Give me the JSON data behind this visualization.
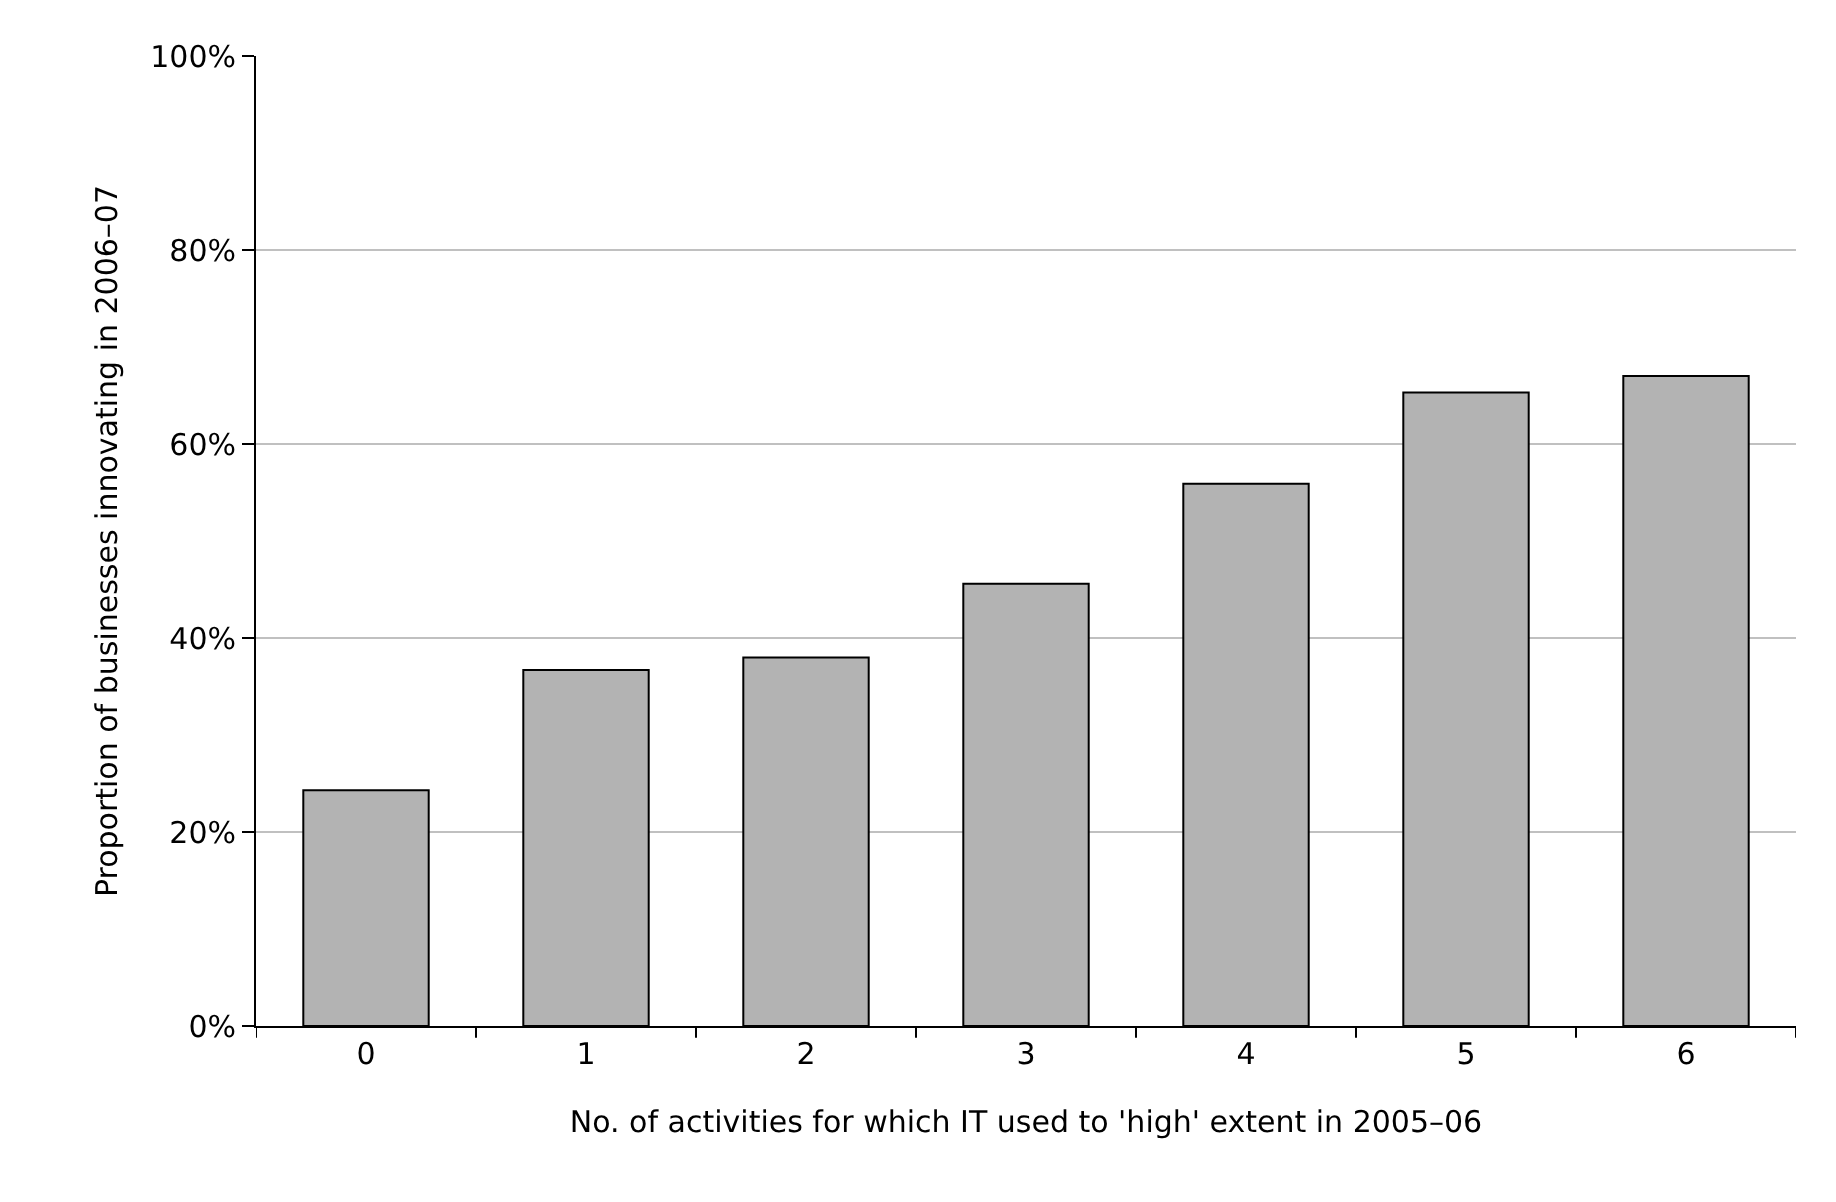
{
  "chart_data": {
    "type": "bar",
    "xlabel": "No. of activities for which IT used to 'high' extent in 2005–06",
    "ylabel": "Proportion of businesses innovating in 2006–07",
    "categories": [
      "0",
      "1",
      "2",
      "3",
      "4",
      "5",
      "6"
    ],
    "values": [
      24.3,
      36.7,
      38.0,
      45.6,
      55.9,
      65.3,
      67.0
    ],
    "color": "#b3b3b3",
    "ylim": [
      0,
      100
    ],
    "yticks": [
      {
        "value": 0,
        "label": "0%"
      },
      {
        "value": 20,
        "label": "20%"
      },
      {
        "value": 40,
        "label": "40%"
      },
      {
        "value": 60,
        "label": "60%"
      },
      {
        "value": 80,
        "label": "80%"
      },
      {
        "value": 100,
        "label": "100%"
      }
    ],
    "grid": "y"
  }
}
